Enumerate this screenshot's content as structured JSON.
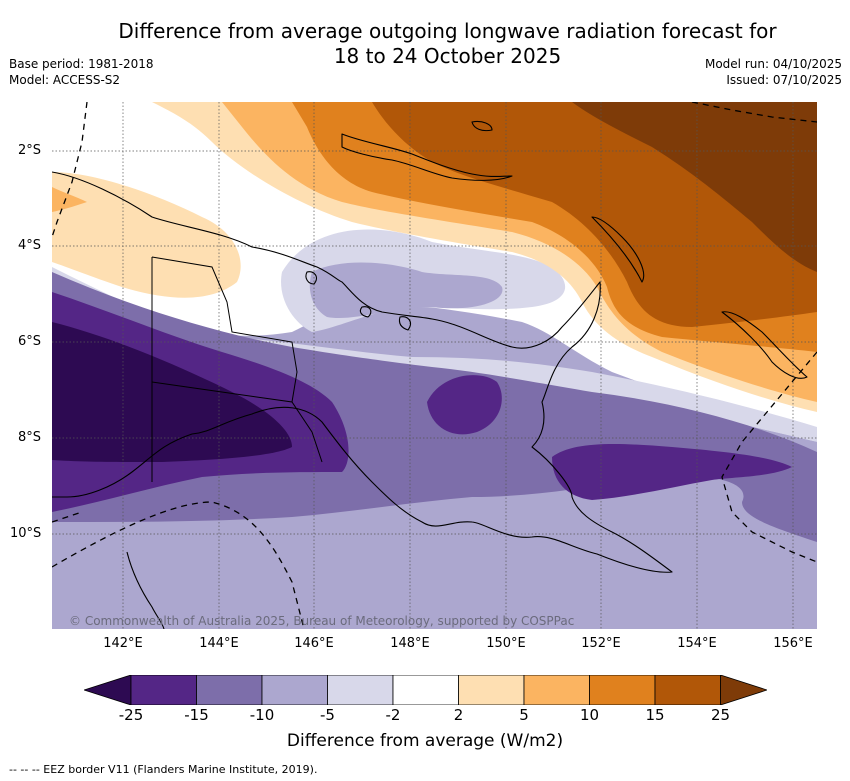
{
  "title_line1": "Difference from average outgoing longwave radiation forecast for",
  "title_line2": "18 to 24 October 2025",
  "meta_left": [
    "Base period: 1981-2018",
    "Model: ACCESS-S2"
  ],
  "meta_right": [
    "Model run: 04/10/2025",
    "Issued: 07/10/2025"
  ],
  "lat_labels": [
    "2°S",
    "4°S",
    "6°S",
    "8°S",
    "10°S"
  ],
  "lon_labels": [
    "142°E",
    "144°E",
    "146°E",
    "148°E",
    "150°E",
    "152°E",
    "154°E",
    "156°E"
  ],
  "copyright": "© Commonwealth of Australia 2025, Bureau of Meteorology, supported by COSPPac",
  "colorbar": {
    "ticks": [
      "-25",
      "-15",
      "-10",
      "-5",
      "-2",
      "2",
      "5",
      "10",
      "15",
      "25"
    ],
    "colors": [
      "#2d0a52",
      "#542686",
      "#7d6eaa",
      "#aca7cf",
      "#d8d8ea",
      "#ffffff",
      "#fedfb2",
      "#fbb461",
      "#e0811e",
      "#b15708",
      "#7e3b08"
    ],
    "title": "Difference from average (W/m2)"
  },
  "footnote": "--  --  -- EEZ border V11 (Flanders Marine Institute, 2019)."
}
